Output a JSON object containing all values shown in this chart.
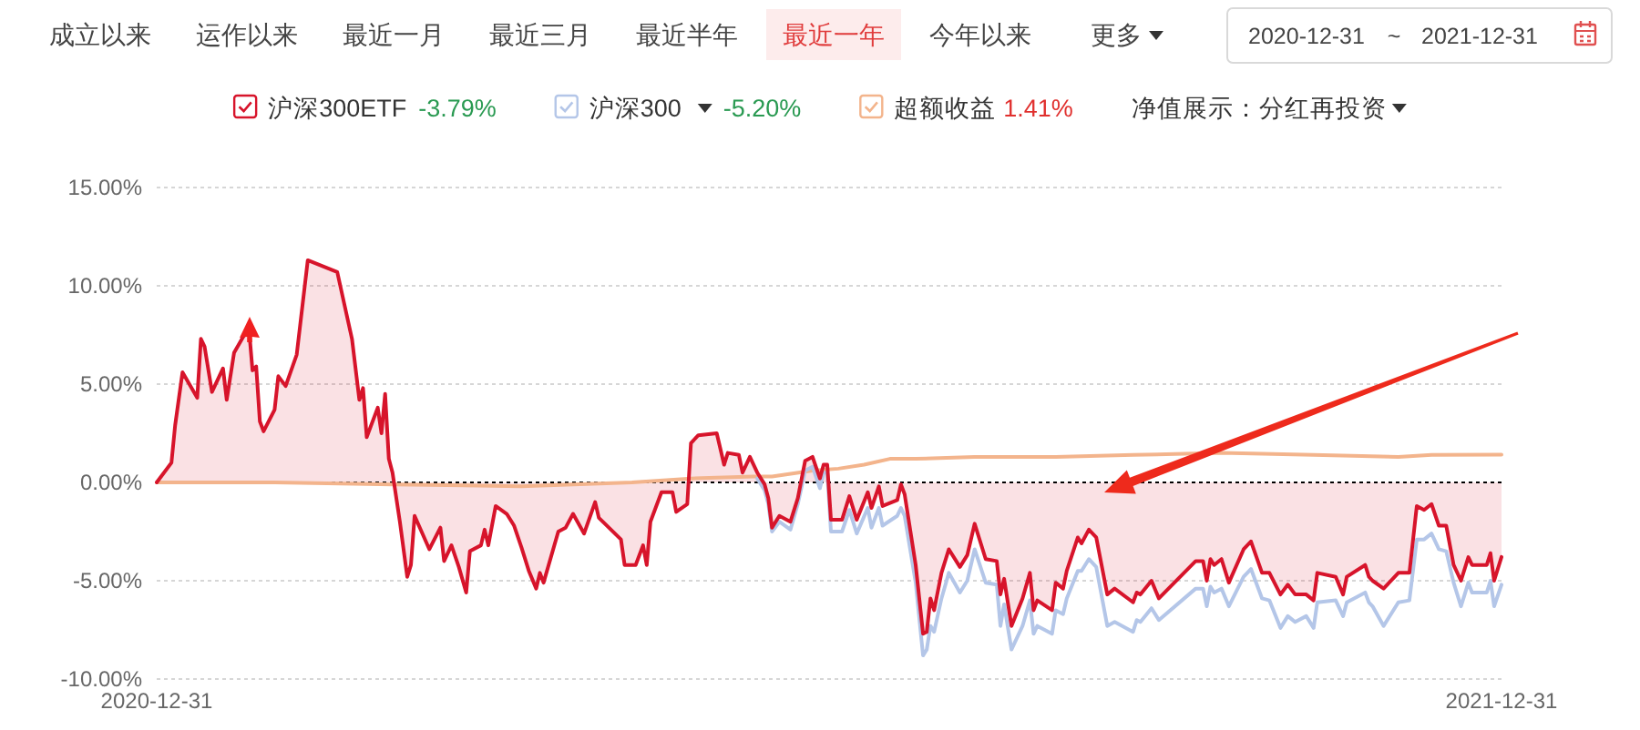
{
  "chart_data": {
    "type": "line",
    "legend": "top",
    "grid": "y",
    "xlim": [
      "2020-12-31",
      "2021-12-31"
    ],
    "xticks": [
      "2020-12-31",
      "2021-12-31"
    ],
    "ylim": [
      -10,
      15
    ],
    "yticks": [
      {
        "value": -10,
        "label": "-10.00%"
      },
      {
        "value": -5,
        "label": "-5.00%"
      },
      {
        "value": 0,
        "label": "0.00%"
      },
      {
        "value": 5,
        "label": "5.00%"
      },
      {
        "value": 10,
        "label": "10.00%"
      },
      {
        "value": 15,
        "label": "15.00%"
      }
    ],
    "ref_lines": [
      {
        "axis": "y",
        "value": 0,
        "color": "#000000",
        "line_style": "dotted"
      }
    ],
    "annotations": [
      "成立以来",
      "运作以来",
      "最近一月",
      "最近三月",
      "最近半年",
      "最近一年",
      "今年以来",
      "更多",
      "2020-12-31",
      "~",
      "2021-12-31",
      "-3.79%",
      "-5.20%",
      "1.41%",
      "净值展示：分红再投资"
    ],
    "series": [
      {
        "name": "沪深300ETF",
        "type": "area",
        "color": "#d7142b",
        "x": [
          "2020-12-31",
          "2021-01-04",
          "2021-01-05",
          "2021-01-07",
          "2021-01-11",
          "2021-01-12",
          "2021-01-13",
          "2021-01-15",
          "2021-01-18",
          "2021-01-19",
          "2021-01-21",
          "2021-01-25",
          "2021-01-26",
          "2021-01-27",
          "2021-01-28",
          "2021-01-29",
          "2021-02-01",
          "2021-02-02",
          "2021-02-04",
          "2021-02-07",
          "2021-02-10",
          "2021-02-18",
          "2021-02-22",
          "2021-02-24",
          "2021-02-25",
          "2021-02-26",
          "2021-03-01",
          "2021-03-02",
          "2021-03-03",
          "2021-03-04",
          "2021-03-05",
          "2021-03-07",
          "2021-03-09",
          "2021-03-10",
          "2021-03-11",
          "2021-03-15",
          "2021-03-18",
          "2021-03-19",
          "2021-03-21",
          "2021-03-23",
          "2021-03-25",
          "2021-03-26",
          "2021-03-29",
          "2021-03-30",
          "2021-03-31",
          "2021-04-02",
          "2021-04-05",
          "2021-04-07",
          "2021-04-09",
          "2021-04-11",
          "2021-04-13",
          "2021-04-14",
          "2021-04-15",
          "2021-04-19",
          "2021-04-21",
          "2021-04-23",
          "2021-04-26",
          "2021-04-29",
          "2021-04-30",
          "2021-05-06",
          "2021-05-07",
          "2021-05-10",
          "2021-05-12",
          "2021-05-13",
          "2021-05-14",
          "2021-05-17",
          "2021-05-20",
          "2021-05-21",
          "2021-05-24",
          "2021-05-25",
          "2021-05-27",
          "2021-06-01",
          "2021-06-03",
          "2021-06-04",
          "2021-06-07",
          "2021-06-08",
          "2021-06-10",
          "2021-06-12",
          "2021-06-14",
          "2021-06-15",
          "2021-06-16",
          "2021-06-18",
          "2021-06-21",
          "2021-06-23",
          "2021-06-25",
          "2021-06-27",
          "2021-06-29",
          "2021-06-30",
          "2021-07-01",
          "2021-07-02",
          "2021-07-05",
          "2021-07-07",
          "2021-07-09",
          "2021-07-12",
          "2021-07-13",
          "2021-07-15",
          "2021-07-16",
          "2021-07-20",
          "2021-07-21",
          "2021-07-22",
          "2021-07-25",
          "2021-07-27",
          "2021-07-28",
          "2021-07-29",
          "2021-07-30",
          "2021-08-01",
          "2021-08-03",
          "2021-08-06",
          "2021-08-08",
          "2021-08-10",
          "2021-08-13",
          "2021-08-16",
          "2021-08-17",
          "2021-08-18",
          "2021-08-20",
          "2021-08-23",
          "2021-08-25",
          "2021-08-26",
          "2021-08-27",
          "2021-08-31",
          "2021-09-01",
          "2021-09-03",
          "2021-09-04",
          "2021-09-07",
          "2021-09-08",
          "2021-09-10",
          "2021-09-12",
          "2021-09-15",
          "2021-09-17",
          "2021-09-22",
          "2021-09-23",
          "2021-09-24",
          "2021-09-27",
          "2021-09-29",
          "2021-10-09",
          "2021-10-11",
          "2021-10-12",
          "2021-10-13",
          "2021-10-14",
          "2021-10-16",
          "2021-10-18",
          "2021-10-22",
          "2021-10-24",
          "2021-10-27",
          "2021-10-29",
          "2021-11-01",
          "2021-11-03",
          "2021-11-05",
          "2021-11-08",
          "2021-11-10",
          "2021-11-11",
          "2021-11-16",
          "2021-11-18",
          "2021-11-19",
          "2021-11-24",
          "2021-11-25",
          "2021-11-26",
          "2021-11-29",
          "2021-12-03",
          "2021-12-06",
          "2021-12-08",
          "2021-12-10",
          "2021-12-12",
          "2021-12-14",
          "2021-12-16",
          "2021-12-18",
          "2021-12-20",
          "2021-12-22",
          "2021-12-23",
          "2021-12-27",
          "2021-12-28",
          "2021-12-29",
          "2021-12-31"
        ],
        "values": [
          0,
          1.0,
          2.9,
          5.6,
          4.3,
          7.3,
          6.9,
          4.6,
          5.8,
          4.2,
          6.6,
          7.9,
          5.7,
          5.9,
          3.1,
          2.6,
          3.7,
          5.4,
          4.9,
          6.5,
          11.3,
          10.7,
          7.3,
          4.2,
          4.8,
          2.3,
          3.8,
          2.5,
          4.5,
          1.2,
          0.5,
          -2.0,
          -4.8,
          -4.2,
          -1.7,
          -3.4,
          -2.3,
          -4.0,
          -3.2,
          -4.3,
          -5.6,
          -3.5,
          -3.2,
          -2.4,
          -3.2,
          -1.2,
          -1.6,
          -2.2,
          -3.3,
          -4.5,
          -5.4,
          -4.6,
          -5.1,
          -2.5,
          -2.3,
          -1.6,
          -2.6,
          -1.0,
          -1.8,
          -2.9,
          -4.2,
          -4.2,
          -3.2,
          -4.2,
          -2.0,
          -0.5,
          -0.5,
          -1.5,
          -1.1,
          2.0,
          2.4,
          2.5,
          0.9,
          1.5,
          1.4,
          0.5,
          1.3,
          0.5,
          -0.1,
          -0.8,
          -2.3,
          -1.7,
          -2.0,
          -0.8,
          1.1,
          1.3,
          0.2,
          0.9,
          0.9,
          -1.9,
          -1.9,
          -0.7,
          -1.9,
          -0.5,
          -1.3,
          -0.2,
          -1.2,
          -0.9,
          -0.1,
          -0.6,
          -4.2,
          -7.7,
          -7.6,
          -5.9,
          -6.5,
          -4.6,
          -3.4,
          -4.3,
          -3.7,
          -2.1,
          -3.9,
          -4.0,
          -5.7,
          -4.9,
          -7.3,
          -5.9,
          -4.6,
          -6.5,
          -6.0,
          -6.5,
          -5.1,
          -5.4,
          -4.5,
          -2.8,
          -3.1,
          -2.4,
          -2.8,
          -5.7,
          -5.4,
          -6.1,
          -5.6,
          -5.7,
          -5.0,
          -5.9,
          -4.0,
          -4.0,
          -5.0,
          -3.9,
          -4.2,
          -3.9,
          -5.1,
          -3.4,
          -3.0,
          -4.6,
          -4.6,
          -5.7,
          -5.2,
          -5.7,
          -5.7,
          -6.0,
          -4.6,
          -4.8,
          -5.7,
          -4.8,
          -4.2,
          -4.8,
          -5.0,
          -5.4,
          -4.6,
          -4.6,
          -1.2,
          -1.4,
          -1.1,
          -2.2,
          -2.2,
          -4.2,
          -5.0,
          -3.8,
          -4.2,
          -4.2,
          -3.6,
          -5.0,
          -3.79
        ]
      },
      {
        "name": "沪深300",
        "type": "line",
        "color": "#b4c6e8",
        "x": [
          "2021-06-12",
          "2021-06-14",
          "2021-06-15",
          "2021-06-16",
          "2021-06-18",
          "2021-06-21",
          "2021-06-23",
          "2021-06-25",
          "2021-06-27",
          "2021-06-29",
          "2021-06-30",
          "2021-07-01",
          "2021-07-02",
          "2021-07-05",
          "2021-07-07",
          "2021-07-09",
          "2021-07-12",
          "2021-07-13",
          "2021-07-15",
          "2021-07-16",
          "2021-07-20",
          "2021-07-21",
          "2021-07-22",
          "2021-07-25",
          "2021-07-27",
          "2021-07-28",
          "2021-07-29",
          "2021-07-30",
          "2021-08-01",
          "2021-08-03",
          "2021-08-06",
          "2021-08-08",
          "2021-08-10",
          "2021-08-13",
          "2021-08-16",
          "2021-08-17",
          "2021-08-18",
          "2021-08-20",
          "2021-08-23",
          "2021-08-25",
          "2021-08-26",
          "2021-08-27",
          "2021-08-31",
          "2021-09-01",
          "2021-09-03",
          "2021-09-04",
          "2021-09-07",
          "2021-09-08",
          "2021-09-10",
          "2021-09-12",
          "2021-09-15",
          "2021-09-17",
          "2021-09-22",
          "2021-09-23",
          "2021-09-24",
          "2021-09-27",
          "2021-09-29",
          "2021-10-09",
          "2021-10-11",
          "2021-10-12",
          "2021-10-13",
          "2021-10-14",
          "2021-10-16",
          "2021-10-18",
          "2021-10-22",
          "2021-10-24",
          "2021-10-27",
          "2021-10-29",
          "2021-11-01",
          "2021-11-03",
          "2021-11-05",
          "2021-11-08",
          "2021-11-10",
          "2021-11-11",
          "2021-11-16",
          "2021-11-18",
          "2021-11-19",
          "2021-11-24",
          "2021-11-25",
          "2021-11-26",
          "2021-11-29",
          "2021-12-03",
          "2021-12-06",
          "2021-12-08",
          "2021-12-10",
          "2021-12-12",
          "2021-12-14",
          "2021-12-16",
          "2021-12-18",
          "2021-12-20",
          "2021-12-22",
          "2021-12-23",
          "2021-12-27",
          "2021-12-28",
          "2021-12-29",
          "2021-12-31"
        ],
        "values": [
          0.2,
          -0.4,
          -1.1,
          -2.5,
          -2.0,
          -2.4,
          -1.1,
          0.6,
          0.8,
          -0.3,
          0.5,
          0.5,
          -2.5,
          -2.5,
          -1.4,
          -2.6,
          -1.3,
          -2.3,
          -1.3,
          -2.2,
          -1.7,
          -1.3,
          -1.7,
          -5.1,
          -8.8,
          -8.5,
          -7.3,
          -7.6,
          -5.9,
          -4.6,
          -5.6,
          -5.0,
          -3.4,
          -5.1,
          -5.2,
          -7.3,
          -6.2,
          -8.5,
          -7.3,
          -6.0,
          -7.7,
          -7.3,
          -7.7,
          -6.5,
          -6.7,
          -5.9,
          -4.5,
          -4.5,
          -3.9,
          -4.3,
          -7.3,
          -7.1,
          -7.6,
          -7.0,
          -7.1,
          -6.4,
          -7.0,
          -5.4,
          -5.4,
          -6.3,
          -5.3,
          -5.6,
          -5.4,
          -6.3,
          -4.8,
          -4.4,
          -5.9,
          -6.0,
          -7.4,
          -6.8,
          -7.1,
          -6.8,
          -7.4,
          -6.1,
          -6.0,
          -6.8,
          -6.1,
          -5.6,
          -6.1,
          -6.3,
          -7.3,
          -6.1,
          -6.0,
          -2.9,
          -2.9,
          -2.6,
          -3.4,
          -3.5,
          -5.1,
          -6.3,
          -5.1,
          -5.6,
          -5.6,
          -5.0,
          -6.3,
          -5.2
        ]
      },
      {
        "name": "超额收益",
        "type": "line",
        "color": "#f3b48c",
        "x": [
          "2020-12-31",
          "2021-02-01",
          "2021-03-05",
          "2021-04-09",
          "2021-05-09",
          "2021-05-25",
          "2021-06-11",
          "2021-06-16",
          "2021-06-27",
          "2021-07-04",
          "2021-07-11",
          "2021-07-18",
          "2021-07-25",
          "2021-08-10",
          "2021-09-01",
          "2021-09-22",
          "2021-10-16",
          "2021-11-10",
          "2021-12-03",
          "2021-12-12",
          "2021-12-31"
        ],
        "values": [
          0,
          0,
          -0.1,
          -0.2,
          0,
          0.2,
          0.3,
          0.3,
          0.6,
          0.7,
          0.9,
          1.2,
          1.2,
          1.3,
          1.3,
          1.4,
          1.5,
          1.4,
          1.3,
          1.4,
          1.41
        ]
      }
    ]
  }
}
